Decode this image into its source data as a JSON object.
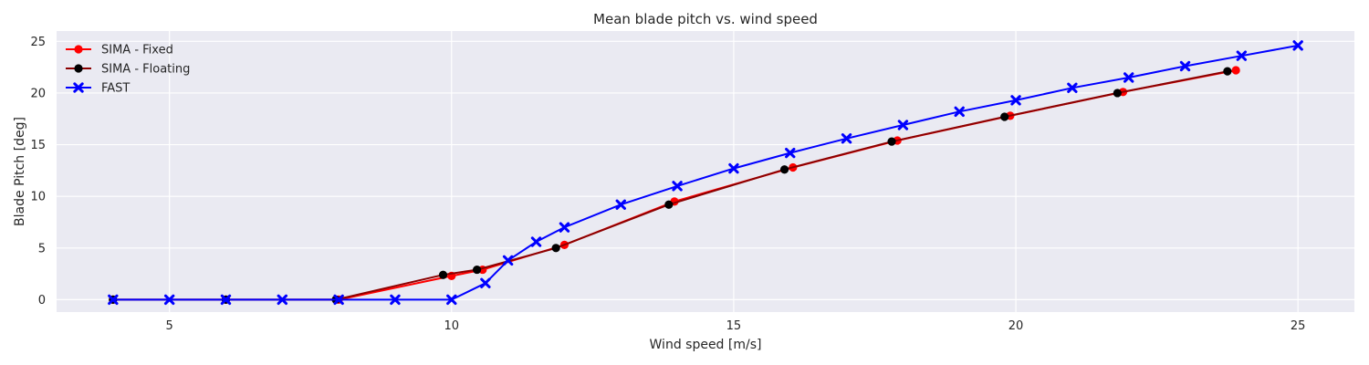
{
  "chart_data": {
    "type": "line",
    "title": "Mean blade pitch vs. wind speed",
    "xlabel": "Wind speed [m/s]",
    "ylabel": "Blade Pitch [deg]",
    "xlim": [
      3,
      26
    ],
    "ylim": [
      -1.2,
      26
    ],
    "xticks": [
      5,
      10,
      15,
      20,
      25
    ],
    "yticks": [
      0,
      5,
      10,
      15,
      20,
      25
    ],
    "grid": true,
    "legend_position": "top-left",
    "background_color": "#eaeaf2",
    "series": [
      {
        "name": "SIMA - Fixed",
        "color": "#ff0000",
        "marker": "circle",
        "x": [
          4,
          6,
          8,
          10,
          10.55,
          12,
          13.95,
          16.05,
          17.9,
          19.9,
          21.9,
          23.9
        ],
        "y": [
          0,
          0,
          0,
          2.3,
          2.9,
          5.3,
          9.5,
          12.8,
          15.4,
          17.8,
          20.1,
          22.2
        ]
      },
      {
        "name": "SIMA - Floating",
        "color": "#000000",
        "line_color": "#8b0000",
        "marker": "circle",
        "x": [
          4,
          6,
          7.95,
          9.85,
          10.45,
          11.85,
          13.85,
          15.9,
          17.8,
          19.8,
          21.8,
          23.75
        ],
        "y": [
          0,
          0,
          0,
          2.4,
          2.9,
          5.0,
          9.2,
          12.6,
          15.3,
          17.7,
          20.0,
          22.1
        ]
      },
      {
        "name": "FAST",
        "color": "#0000ff",
        "marker": "x",
        "x": [
          4,
          5,
          6,
          7,
          8,
          9,
          10,
          10.6,
          11,
          11.5,
          12,
          13,
          14,
          15,
          16,
          17,
          18,
          19,
          20,
          21,
          22,
          23,
          24,
          25
        ],
        "y": [
          0,
          0,
          0,
          0,
          0,
          0,
          0,
          1.6,
          3.8,
          5.6,
          7.0,
          9.2,
          11.0,
          12.7,
          14.2,
          15.6,
          16.9,
          18.2,
          19.3,
          20.5,
          21.5,
          22.6,
          23.6,
          24.6
        ]
      }
    ]
  }
}
